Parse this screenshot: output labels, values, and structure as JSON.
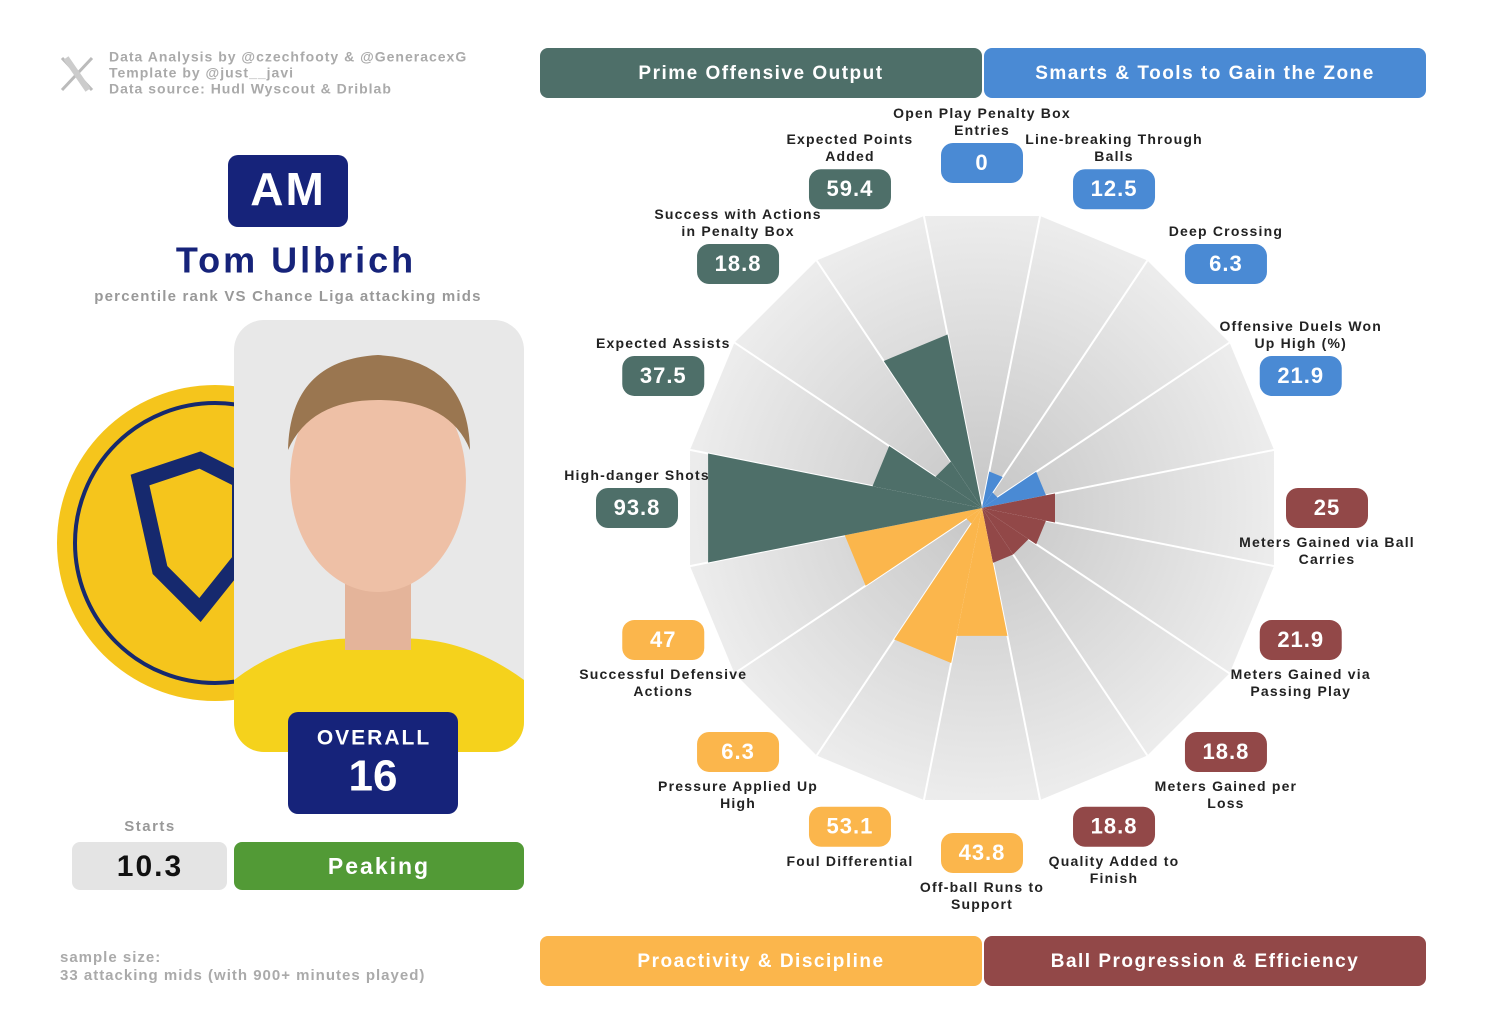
{
  "credits": {
    "lines": [
      "Data Analysis by @czechfooty & @GeneracexG",
      "Template by @just__javi",
      "Data source: Hudl Wyscout & Driblab"
    ]
  },
  "player": {
    "position": "AM",
    "name": "Tom Ulbrich",
    "subtitle": "percentile rank VS Chance Liga attacking mids",
    "overall_label": "OVERALL",
    "overall": 16,
    "starts_label": "Starts",
    "starts": 10.3,
    "status": "Peaking"
  },
  "footer": {
    "lines": [
      "sample size:",
      "33 attacking mids (with 900+ minutes played)"
    ]
  },
  "chart_data": {
    "type": "radar_bar",
    "rlim": [
      0,
      100
    ],
    "background_color": "#e2e2e2",
    "series": [
      {
        "name": "Smarts & Tools to Gain the Zone",
        "color": "#4a8ad4",
        "categories": [
          "Open Play Penalty Box Entries",
          "Line-breaking Through Balls",
          "Deep Crossing",
          "Offensive Duels Won Up High (%)"
        ],
        "values": [
          0,
          12.5,
          6.3,
          21.9
        ]
      },
      {
        "name": "Ball Progression & Efficiency",
        "color": "#924848",
        "categories": [
          "Meters Gained via Ball Carries",
          "Meters Gained via Passing Play",
          "Meters Gained per Loss",
          "Quality Added to Finish"
        ],
        "values": [
          25,
          21.9,
          18.8,
          18.8
        ]
      },
      {
        "name": "Proactivity & Discipline",
        "color": "#fbb64c",
        "categories": [
          "Off-ball Runs to Support",
          "Foul Differential",
          "Pressure Applied Up High",
          "Successful Defensive Actions"
        ],
        "values": [
          43.8,
          53.1,
          6.3,
          47
        ]
      },
      {
        "name": "Prime Offensive Output",
        "color": "#4e6f69",
        "categories": [
          "High-danger Shots",
          "Expected Assists",
          "Success with Actions in Penalty Box",
          "Expected Points Added"
        ],
        "values": [
          93.8,
          37.5,
          18.8,
          59.4
        ]
      }
    ]
  }
}
